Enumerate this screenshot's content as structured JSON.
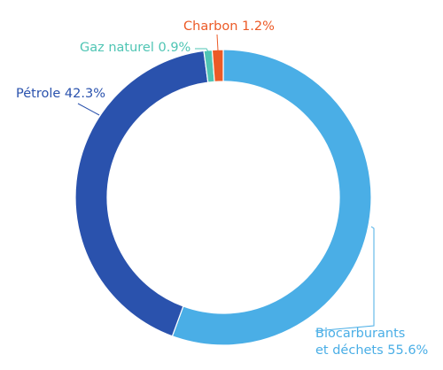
{
  "chart_data": {
    "type": "pie",
    "donut": true,
    "slices": [
      {
        "label": "Biocarburants et déchets",
        "lines": [
          "Biocarburants",
          "et déchets 55.6%"
        ],
        "value": 55.6,
        "color": "#4aaee6"
      },
      {
        "label": "Pétrole",
        "lines": [
          "Pétrole 42.3%"
        ],
        "value": 42.3,
        "color": "#2a52ad"
      },
      {
        "label": "Gaz naturel",
        "lines": [
          "Gaz naturel 0.9%"
        ],
        "value": 0.9,
        "color": "#4fc5b4"
      },
      {
        "label": "Charbon",
        "lines": [
          "Charbon 1.2%"
        ],
        "value": 1.2,
        "color": "#ec5a26"
      }
    ]
  }
}
